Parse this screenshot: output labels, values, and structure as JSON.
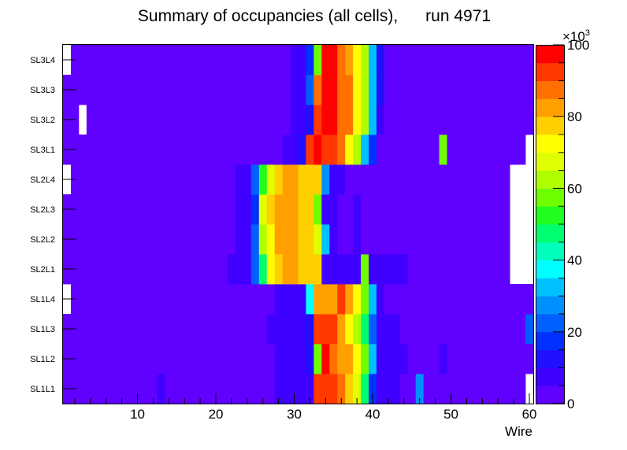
{
  "chart_data": {
    "type": "heatmap",
    "title": "Summary of occupancies (all cells),      run 4971",
    "xlabel": "Wire",
    "ylabel": "",
    "xlim": [
      0.5,
      60.5
    ],
    "x_ticks": [
      10,
      20,
      30,
      40,
      50,
      60
    ],
    "rows": [
      "SL1L1",
      "SL1L2",
      "SL1L3",
      "SL1L4",
      "SL2L1",
      "SL2L2",
      "SL2L3",
      "SL2L4",
      "SL3L1",
      "SL3L2",
      "SL3L3",
      "SL3L4"
    ],
    "z_unit_label": "×10³",
    "z_ticks": [
      0,
      20,
      40,
      60,
      80,
      100
    ],
    "zlim": [
      0,
      100
    ],
    "palette": [
      "#6000ff",
      "#4000ff",
      "#2010ff",
      "#0030ff",
      "#0060ff",
      "#0090ff",
      "#00c0ff",
      "#00ffff",
      "#00ffbb",
      "#00ff70",
      "#20ff20",
      "#70ff00",
      "#b0ff00",
      "#e0ff00",
      "#ffff00",
      "#ffd000",
      "#ffa000",
      "#ff7000",
      "#ff3800",
      "#ff0000"
    ],
    "segments": [
      [
        [
          1,
          12,
          2
        ],
        [
          13,
          13,
          8
        ],
        [
          14,
          27,
          2
        ],
        [
          28,
          30,
          7
        ],
        [
          31,
          32,
          9
        ],
        [
          33,
          35,
          90
        ],
        [
          36,
          36,
          85
        ],
        [
          37,
          37,
          75
        ],
        [
          38,
          38,
          65
        ],
        [
          39,
          39,
          45
        ],
        [
          40,
          40,
          16
        ],
        [
          41,
          43,
          8
        ],
        [
          44,
          45,
          2
        ],
        [
          46,
          46,
          25
        ],
        [
          47,
          59,
          2
        ],
        [
          60,
          60,
          -1
        ]
      ],
      [
        [
          1,
          27,
          2
        ],
        [
          28,
          31,
          7
        ],
        [
          32,
          32,
          12
        ],
        [
          33,
          33,
          55
        ],
        [
          34,
          34,
          97
        ],
        [
          35,
          35,
          88
        ],
        [
          36,
          37,
          82
        ],
        [
          38,
          38,
          72
        ],
        [
          39,
          39,
          58
        ],
        [
          40,
          40,
          30
        ],
        [
          41,
          44,
          8
        ],
        [
          45,
          48,
          2
        ],
        [
          49,
          49,
          8
        ],
        [
          50,
          60,
          2
        ]
      ],
      [
        [
          1,
          26,
          2
        ],
        [
          27,
          31,
          7
        ],
        [
          32,
          32,
          12
        ],
        [
          33,
          35,
          90
        ],
        [
          36,
          36,
          84
        ],
        [
          37,
          37,
          74
        ],
        [
          38,
          38,
          63
        ],
        [
          39,
          39,
          45
        ],
        [
          40,
          40,
          22
        ],
        [
          41,
          43,
          8
        ],
        [
          44,
          59,
          2
        ],
        [
          60,
          60,
          22
        ]
      ],
      [
        [
          1,
          1,
          -1
        ],
        [
          2,
          27,
          2
        ],
        [
          28,
          31,
          7
        ],
        [
          32,
          32,
          35
        ],
        [
          33,
          33,
          80
        ],
        [
          34,
          35,
          84
        ],
        [
          36,
          36,
          92
        ],
        [
          37,
          37,
          84
        ],
        [
          38,
          38,
          70
        ],
        [
          39,
          39,
          58
        ],
        [
          40,
          40,
          30
        ],
        [
          41,
          41,
          8
        ],
        [
          42,
          60,
          2
        ]
      ],
      [
        [
          1,
          21,
          2
        ],
        [
          22,
          24,
          8
        ],
        [
          25,
          25,
          20
        ],
        [
          26,
          26,
          45
        ],
        [
          27,
          27,
          70
        ],
        [
          28,
          28,
          78
        ],
        [
          29,
          30,
          82
        ],
        [
          31,
          33,
          75
        ],
        [
          34,
          34,
          8
        ],
        [
          35,
          38,
          8
        ],
        [
          39,
          39,
          55
        ],
        [
          40,
          44,
          8
        ],
        [
          45,
          57,
          2
        ],
        [
          58,
          60,
          -1
        ]
      ],
      [
        [
          1,
          22,
          2
        ],
        [
          23,
          24,
          8
        ],
        [
          25,
          25,
          20
        ],
        [
          26,
          26,
          60
        ],
        [
          27,
          27,
          74
        ],
        [
          28,
          30,
          80
        ],
        [
          31,
          32,
          75
        ],
        [
          33,
          33,
          65
        ],
        [
          34,
          34,
          30
        ],
        [
          35,
          35,
          8
        ],
        [
          36,
          37,
          2
        ],
        [
          38,
          38,
          8
        ],
        [
          39,
          57,
          2
        ],
        [
          58,
          60,
          -1
        ]
      ],
      [
        [
          1,
          22,
          2
        ],
        [
          23,
          24,
          8
        ],
        [
          25,
          25,
          18
        ],
        [
          26,
          26,
          68
        ],
        [
          27,
          27,
          78
        ],
        [
          28,
          30,
          82
        ],
        [
          31,
          32,
          75
        ],
        [
          33,
          33,
          55
        ],
        [
          34,
          34,
          8
        ],
        [
          35,
          35,
          8
        ],
        [
          36,
          37,
          2
        ],
        [
          38,
          38,
          8
        ],
        [
          39,
          57,
          2
        ],
        [
          58,
          60,
          -1
        ]
      ],
      [
        [
          1,
          1,
          -1
        ],
        [
          2,
          22,
          2
        ],
        [
          23,
          24,
          8
        ],
        [
          25,
          25,
          20
        ],
        [
          26,
          26,
          52
        ],
        [
          27,
          27,
          68
        ],
        [
          28,
          28,
          76
        ],
        [
          29,
          30,
          82
        ],
        [
          31,
          33,
          75
        ],
        [
          34,
          34,
          28
        ],
        [
          35,
          36,
          8
        ],
        [
          37,
          57,
          2
        ],
        [
          58,
          60,
          -1
        ]
      ],
      [
        [
          1,
          28,
          2
        ],
        [
          29,
          30,
          7
        ],
        [
          31,
          31,
          12
        ],
        [
          32,
          32,
          93
        ],
        [
          33,
          33,
          97
        ],
        [
          34,
          34,
          93
        ],
        [
          35,
          35,
          93
        ],
        [
          36,
          36,
          85
        ],
        [
          37,
          37,
          72
        ],
        [
          38,
          38,
          60
        ],
        [
          39,
          39,
          30
        ],
        [
          40,
          40,
          16
        ],
        [
          41,
          48,
          2
        ],
        [
          49,
          49,
          55
        ],
        [
          50,
          59,
          2
        ],
        [
          60,
          60,
          -1
        ]
      ],
      [
        [
          1,
          2,
          2
        ],
        [
          3,
          3,
          -1
        ],
        [
          4,
          29,
          2
        ],
        [
          30,
          31,
          7
        ],
        [
          32,
          32,
          12
        ],
        [
          33,
          33,
          92
        ],
        [
          34,
          35,
          95
        ],
        [
          36,
          37,
          88
        ],
        [
          38,
          38,
          72
        ],
        [
          39,
          39,
          60
        ],
        [
          40,
          40,
          30
        ],
        [
          41,
          41,
          8
        ],
        [
          42,
          60,
          2
        ]
      ],
      [
        [
          1,
          29,
          2
        ],
        [
          30,
          31,
          7
        ],
        [
          32,
          32,
          22
        ],
        [
          33,
          33,
          88
        ],
        [
          34,
          35,
          95
        ],
        [
          36,
          37,
          88
        ],
        [
          38,
          38,
          72
        ],
        [
          39,
          39,
          62
        ],
        [
          40,
          40,
          30
        ],
        [
          41,
          41,
          12
        ],
        [
          42,
          60,
          2
        ]
      ],
      [
        [
          1,
          1,
          -1
        ],
        [
          2,
          29,
          2
        ],
        [
          30,
          31,
          7
        ],
        [
          32,
          32,
          18
        ],
        [
          33,
          33,
          58
        ],
        [
          34,
          35,
          95
        ],
        [
          36,
          36,
          88
        ],
        [
          37,
          37,
          82
        ],
        [
          38,
          38,
          72
        ],
        [
          39,
          39,
          62
        ],
        [
          40,
          40,
          30
        ],
        [
          41,
          41,
          12
        ],
        [
          42,
          60,
          2
        ]
      ]
    ]
  }
}
